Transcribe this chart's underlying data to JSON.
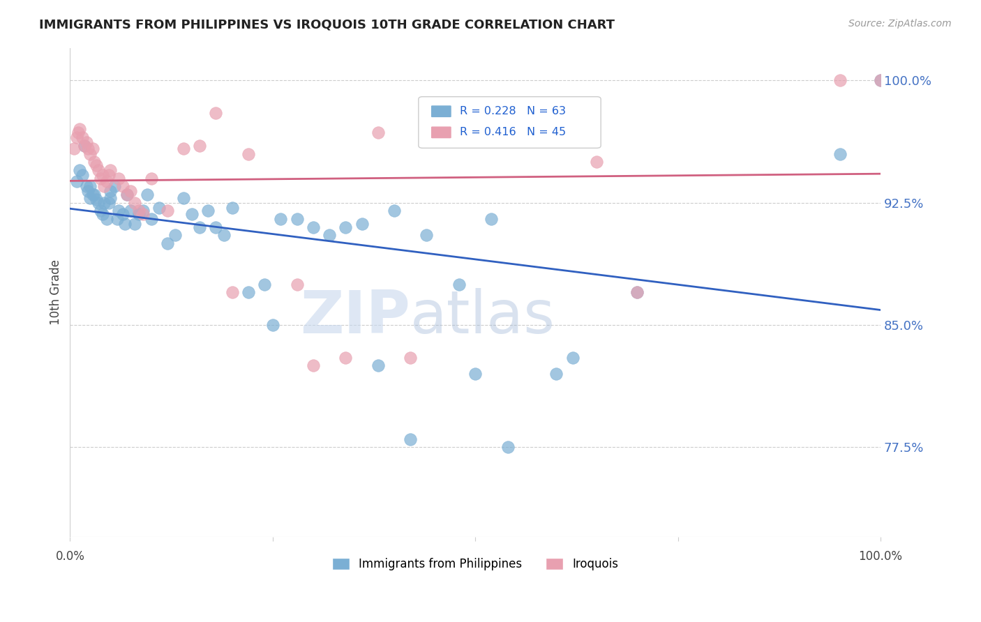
{
  "title": "IMMIGRANTS FROM PHILIPPINES VS IROQUOIS 10TH GRADE CORRELATION CHART",
  "source": "Source: ZipAtlas.com",
  "ylabel": "10th Grade",
  "xlim": [
    0.0,
    1.0
  ],
  "ylim": [
    0.72,
    1.02
  ],
  "blue_R": 0.228,
  "blue_N": 63,
  "pink_R": 0.416,
  "pink_N": 45,
  "blue_color": "#7bafd4",
  "pink_color": "#e8a0b0",
  "blue_line_color": "#3060c0",
  "pink_line_color": "#d06080",
  "legend_color": "#2060d0",
  "right_tick_color": "#4472c4",
  "blue_x": [
    0.008,
    0.012,
    0.015,
    0.018,
    0.02,
    0.022,
    0.025,
    0.025,
    0.028,
    0.03,
    0.032,
    0.035,
    0.038,
    0.04,
    0.042,
    0.045,
    0.048,
    0.05,
    0.05,
    0.055,
    0.058,
    0.06,
    0.065,
    0.068,
    0.07,
    0.075,
    0.08,
    0.085,
    0.09,
    0.095,
    0.1,
    0.11,
    0.12,
    0.13,
    0.14,
    0.15,
    0.16,
    0.17,
    0.18,
    0.19,
    0.2,
    0.22,
    0.24,
    0.25,
    0.26,
    0.28,
    0.3,
    0.32,
    0.34,
    0.36,
    0.38,
    0.4,
    0.42,
    0.44,
    0.48,
    0.5,
    0.52,
    0.54,
    0.6,
    0.62,
    0.7,
    0.95,
    1.0
  ],
  "blue_y": [
    0.938,
    0.945,
    0.942,
    0.96,
    0.935,
    0.932,
    0.935,
    0.928,
    0.93,
    0.93,
    0.927,
    0.925,
    0.92,
    0.918,
    0.925,
    0.915,
    0.925,
    0.928,
    0.932,
    0.935,
    0.915,
    0.92,
    0.918,
    0.912,
    0.93,
    0.92,
    0.912,
    0.918,
    0.92,
    0.93,
    0.915,
    0.922,
    0.9,
    0.905,
    0.928,
    0.918,
    0.91,
    0.92,
    0.91,
    0.905,
    0.922,
    0.87,
    0.875,
    0.85,
    0.915,
    0.915,
    0.91,
    0.905,
    0.91,
    0.912,
    0.825,
    0.92,
    0.78,
    0.905,
    0.875,
    0.82,
    0.915,
    0.775,
    0.82,
    0.83,
    0.87,
    0.955,
    1.0
  ],
  "pink_x": [
    0.005,
    0.008,
    0.01,
    0.012,
    0.015,
    0.018,
    0.02,
    0.022,
    0.025,
    0.028,
    0.03,
    0.032,
    0.035,
    0.038,
    0.04,
    0.042,
    0.045,
    0.048,
    0.05,
    0.06,
    0.065,
    0.07,
    0.075,
    0.08,
    0.085,
    0.09,
    0.1,
    0.12,
    0.14,
    0.16,
    0.18,
    0.2,
    0.22,
    0.28,
    0.3,
    0.34,
    0.38,
    0.42,
    0.48,
    0.5,
    0.6,
    0.65,
    0.7,
    0.95,
    1.0
  ],
  "pink_y": [
    0.958,
    0.965,
    0.968,
    0.97,
    0.965,
    0.96,
    0.962,
    0.958,
    0.955,
    0.958,
    0.95,
    0.948,
    0.945,
    0.94,
    0.942,
    0.935,
    0.938,
    0.942,
    0.945,
    0.94,
    0.935,
    0.93,
    0.932,
    0.925,
    0.92,
    0.918,
    0.94,
    0.92,
    0.958,
    0.96,
    0.98,
    0.87,
    0.955,
    0.875,
    0.825,
    0.83,
    0.968,
    0.83,
    0.965,
    0.98,
    0.985,
    0.95,
    0.87,
    1.0,
    1.0
  ],
  "watermark_zip": "ZIP",
  "watermark_atlas": "atlas",
  "background_color": "#ffffff",
  "grid_color": "#cccccc",
  "yticks": [
    0.775,
    0.85,
    0.925,
    1.0
  ],
  "ytick_labels": [
    "77.5%",
    "85.0%",
    "92.5%",
    "100.0%"
  ]
}
